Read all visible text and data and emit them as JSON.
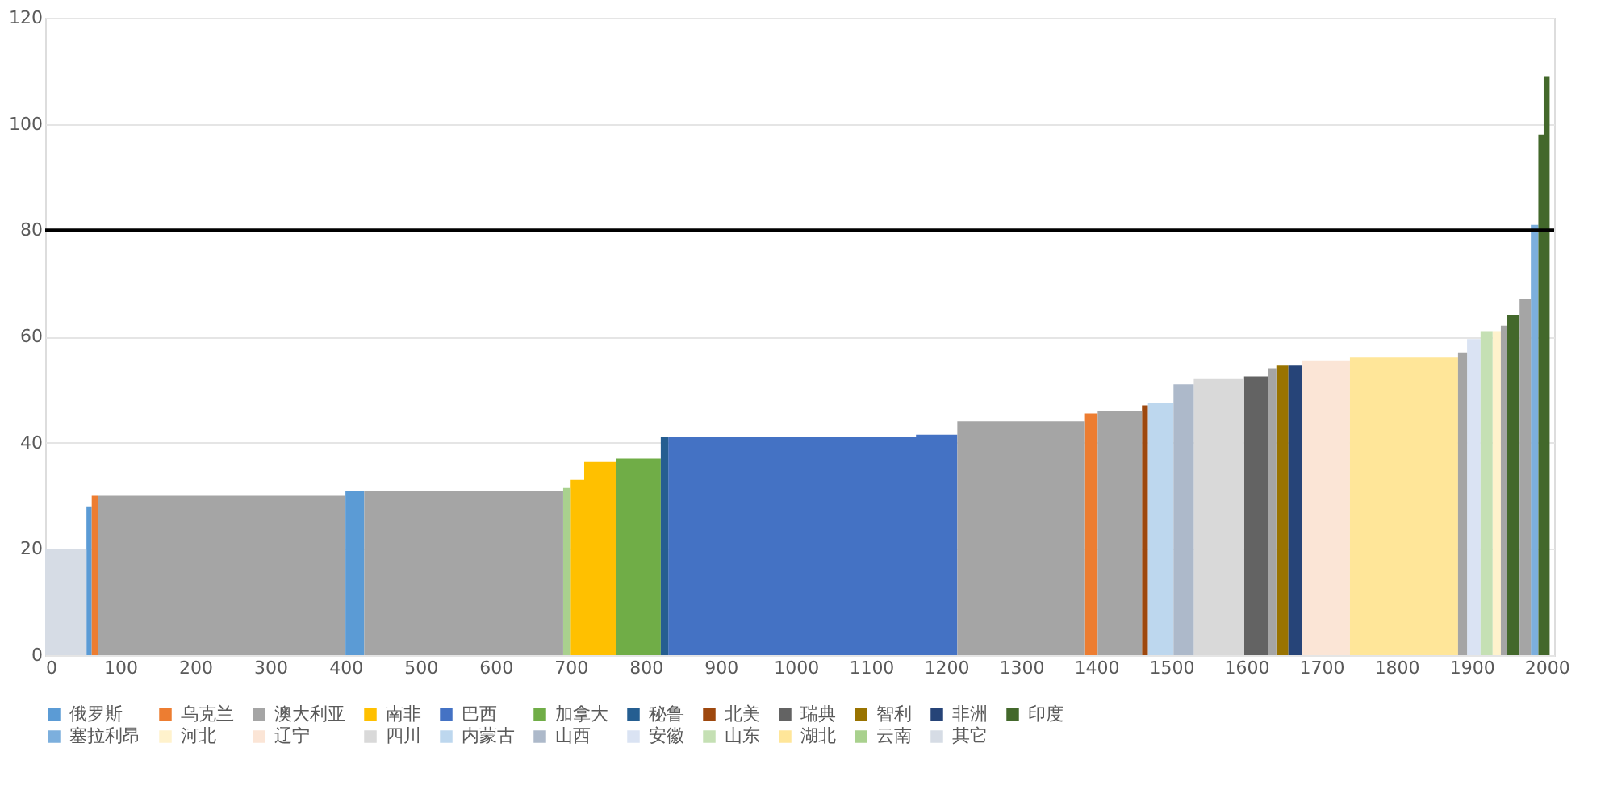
{
  "chart_data": {
    "type": "area",
    "xlim": [
      0,
      2010
    ],
    "xticks": [
      0,
      100,
      200,
      300,
      400,
      500,
      600,
      700,
      800,
      900,
      1000,
      1100,
      1200,
      1300,
      1400,
      1500,
      1600,
      1700,
      1800,
      1900,
      2000
    ],
    "ylim": [
      0,
      120
    ],
    "yticks": [
      0,
      20,
      40,
      60,
      80,
      100,
      120
    ],
    "grid": "y",
    "legend": "bottom",
    "ref_lines": [
      {
        "axis": "y",
        "value": 80,
        "color": "#000000"
      }
    ],
    "series": [
      {
        "name": "俄罗斯",
        "color": "#5b9bd5",
        "x": [
          55,
          62
        ],
        "values": [
          28,
          28
        ]
      },
      {
        "name": "乌克兰",
        "color": "#ed7d31",
        "x": [
          62,
          70
        ],
        "values": [
          30,
          30
        ]
      },
      {
        "name": "澳大利亚",
        "color": "#a5a5a5",
        "x": [
          70,
          400
        ],
        "values": [
          30,
          30
        ]
      },
      {
        "name": "南非",
        "color": "#ffc000",
        "x": [
          700,
          718,
          718,
          760
        ],
        "values": [
          33,
          33,
          36.5,
          36.5
        ]
      },
      {
        "name": "巴西",
        "color": "#4472c4",
        "x": [
          830,
          1160,
          1160,
          1215
        ],
        "values": [
          41,
          41,
          41.5,
          41.5
        ]
      },
      {
        "name": "加拿大",
        "color": "#70ad47",
        "x": [
          760,
          820
        ],
        "values": [
          37,
          37
        ]
      },
      {
        "name": "秘鲁",
        "color": "#255e91",
        "x": [
          820,
          830
        ],
        "values": [
          41,
          41
        ]
      },
      {
        "name": "北美",
        "color": "#9e480e",
        "x": [
          1461,
          1469
        ],
        "values": [
          47,
          47
        ]
      },
      {
        "name": "瑞典",
        "color": "#636363",
        "x": [
          1597,
          1629
        ],
        "values": [
          52.5,
          52.5
        ]
      },
      {
        "name": "智利",
        "color": "#997300",
        "x": [
          1640,
          1656
        ],
        "values": [
          54.5,
          54.5
        ]
      },
      {
        "name": "非洲",
        "color": "#264478",
        "x": [
          1656,
          1674
        ],
        "values": [
          54.5,
          54.5
        ]
      },
      {
        "name": "印度",
        "color": "#43682b",
        "x": [
          1947,
          1964
        ],
        "values": [
          64,
          64
        ]
      },
      {
        "name": "塞拉利昂",
        "color": "#7cafdd",
        "x": [
          1979,
          1989
        ],
        "values": [
          81,
          81
        ]
      },
      {
        "name": "河北",
        "color": "#fff2cc",
        "x": [
          1928,
          1939
        ],
        "values": [
          61,
          61
        ]
      },
      {
        "name": "辽宁",
        "color": "#fbe5d6",
        "x": [
          1674,
          1738
        ],
        "values": [
          55.5,
          55.5
        ]
      },
      {
        "name": "四川",
        "color": "#d9d9d9",
        "x": [
          1530,
          1597
        ],
        "values": [
          52,
          52
        ]
      },
      {
        "name": "内蒙古",
        "color": "#bdd7ee",
        "x": [
          1469,
          1503
        ],
        "values": [
          47.5,
          47.5
        ]
      },
      {
        "name": "山西",
        "color": "#adb9ca",
        "x": [
          1503,
          1530
        ],
        "values": [
          51,
          51
        ]
      },
      {
        "name": "安徽",
        "color": "#dae3f3",
        "x": [
          1894,
          1912
        ],
        "values": [
          59.5,
          59.5
        ]
      },
      {
        "name": "山东",
        "color": "#c5e0b4",
        "x": [
          1912,
          1928
        ],
        "values": [
          61,
          61
        ]
      },
      {
        "name": "湖北",
        "color": "#ffe699",
        "x": [
          1738,
          1882
        ],
        "values": [
          56,
          56
        ]
      },
      {
        "name": "云南",
        "color": "#a9d18e",
        "x": [
          690,
          700
        ],
        "values": [
          31.5,
          31.5
        ]
      },
      {
        "name": "其它",
        "color": "#d6dce5",
        "x": [
          0,
          55
        ],
        "values": [
          20,
          20
        ]
      },
      {
        "color": "#5b9bd5",
        "x": [
          400,
          425
        ],
        "values": [
          31,
          31
        ]
      },
      {
        "color": "#ed7d31",
        "x": [
          1384,
          1402
        ],
        "values": [
          45.5,
          45.5
        ]
      },
      {
        "color": "#a5a5a5",
        "x": [
          425,
          690
        ],
        "values": [
          31,
          31
        ]
      },
      {
        "color": "#a5a5a5",
        "x": [
          1215,
          1384
        ],
        "values": [
          44,
          44
        ]
      },
      {
        "color": "#a5a5a5",
        "x": [
          1402,
          1461
        ],
        "values": [
          46,
          46
        ]
      },
      {
        "color": "#a5a5a5",
        "x": [
          1629,
          1640
        ],
        "values": [
          54,
          54
        ]
      },
      {
        "color": "#a5a5a5",
        "x": [
          1882,
          1894
        ],
        "values": [
          57,
          57
        ]
      },
      {
        "color": "#a5a5a5",
        "x": [
          1939,
          1947
        ],
        "values": [
          62,
          62
        ]
      },
      {
        "color": "#a5a5a5",
        "x": [
          1964,
          1979
        ],
        "values": [
          67,
          67
        ]
      },
      {
        "color": "#43682b",
        "x": [
          1989,
          1996,
          1996,
          2004
        ],
        "values": [
          98,
          98,
          109,
          109
        ]
      }
    ]
  }
}
